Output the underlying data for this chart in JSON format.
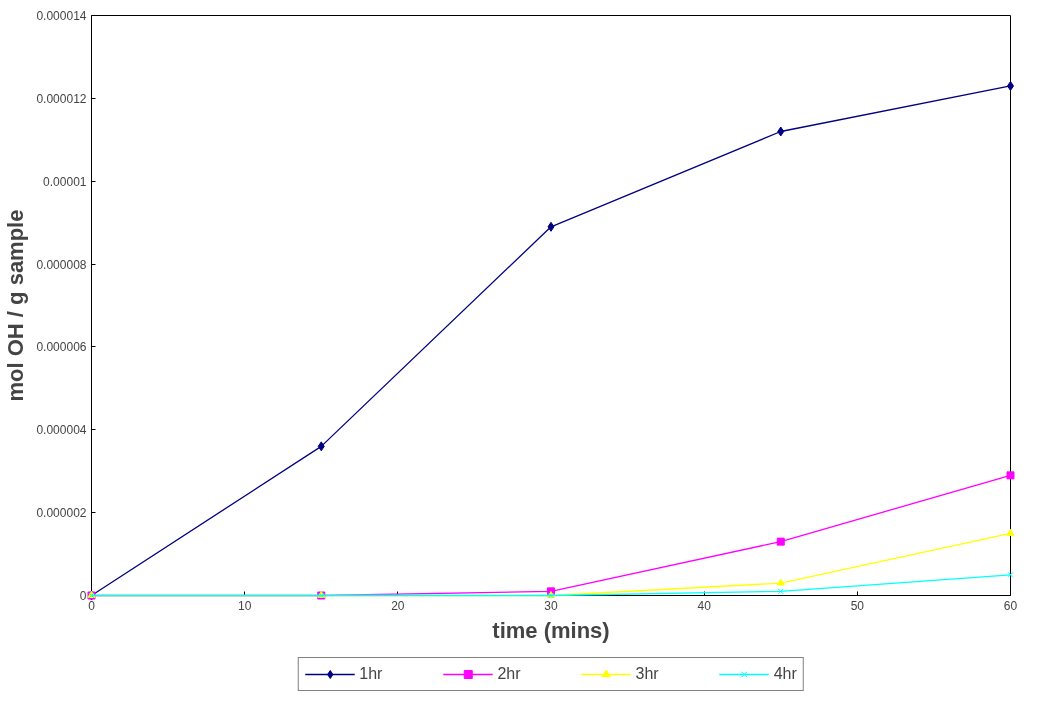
{
  "chart_data": {
    "type": "line",
    "xlabel": "time (mins)",
    "ylabel": "mol OH / g sample",
    "x": [
      0,
      15,
      30,
      45,
      60
    ],
    "series": [
      {
        "name": "1hr",
        "color": "#000080",
        "marker": "diamond",
        "values": [
          0,
          3.6e-06,
          8.9e-06,
          1.12e-05,
          1.23e-05
        ]
      },
      {
        "name": "2hr",
        "color": "#ff00ff",
        "marker": "square",
        "values": [
          0,
          0,
          1e-07,
          1.3e-06,
          2.9e-06
        ]
      },
      {
        "name": "3hr",
        "color": "#ffff00",
        "marker": "triangle",
        "values": [
          0,
          0,
          0,
          3e-07,
          1.5e-06
        ]
      },
      {
        "name": "4hr",
        "color": "#00ffff",
        "marker": "cross",
        "values": [
          0,
          0,
          0,
          1e-07,
          5e-07
        ]
      }
    ],
    "xlim": [
      0,
      60
    ],
    "xticks": [
      0,
      10,
      20,
      30,
      40,
      50,
      60
    ],
    "ylim": [
      0,
      1.4e-05
    ],
    "yticks": [
      {
        "value": 0,
        "label": "0"
      },
      {
        "value": 2e-06,
        "label": "0.000002"
      },
      {
        "value": 4e-06,
        "label": "0.000004"
      },
      {
        "value": 6e-06,
        "label": "0.000006"
      },
      {
        "value": 8e-06,
        "label": "0.000008"
      },
      {
        "value": 1e-05,
        "label": "0.00001"
      },
      {
        "value": 1.2e-05,
        "label": "0.000012"
      },
      {
        "value": 1.4e-05,
        "label": "0.000014"
      }
    ],
    "grid": false,
    "legend": "bottom",
    "line_style": "solid"
  }
}
